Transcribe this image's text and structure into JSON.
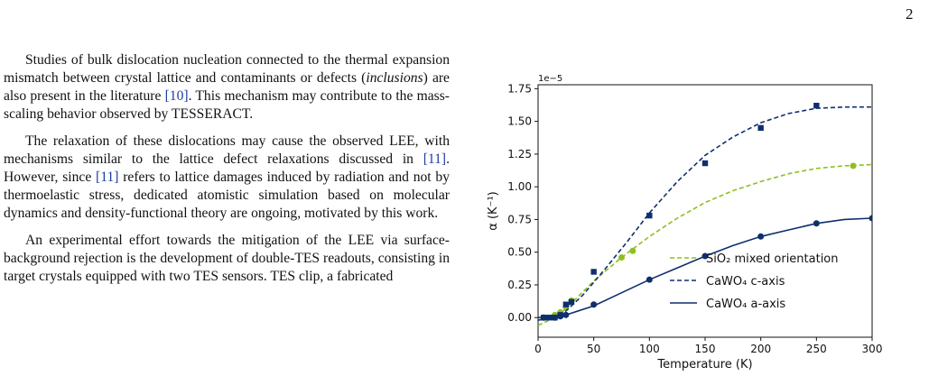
{
  "page_number": "2",
  "paragraphs": [
    {
      "parts": [
        {
          "text": "Studies of bulk dislocation nucleation connected to the thermal expansion mismatch between crystal lattice and contaminants or defects ("
        },
        {
          "text": "inclusions",
          "style": "italic"
        },
        {
          "text": ") are also present in the literature "
        },
        {
          "text": "[10]",
          "style": "cite"
        },
        {
          "text": ". This mechanism may contribute to the mass-scaling behavior observed by TESSERACT."
        }
      ]
    },
    {
      "parts": [
        {
          "text": "The relaxation of these dislocations may cause the observed LEE, with mechanisms similar to the lattice defect relaxations discussed in "
        },
        {
          "text": "[11]",
          "style": "cite"
        },
        {
          "text": ". However, since "
        },
        {
          "text": "[11]",
          "style": "cite"
        },
        {
          "text": " refers to lattice damages induced by radiation and not by thermoelastic stress, dedicated atomistic simulation based on molecular dynamics and density-functional theory are ongoing, motivated by this work."
        }
      ]
    },
    {
      "parts": [
        {
          "text": "An experimental effort towards the mitigation of the LEE via surface-background rejection is the development of double-TES readouts, consisting in target crystals equipped with two TES sensors. TES clip, a fabricated"
        }
      ]
    }
  ],
  "chart_data": {
    "type": "line",
    "xlabel": "Temperature (K)",
    "ylabel": "α (K⁻¹)",
    "y_offset_text": "1e−5",
    "xlim": [
      0,
      300
    ],
    "ylim": [
      -0.15,
      1.78
    ],
    "x_ticks": [
      0,
      50,
      100,
      150,
      200,
      250,
      300
    ],
    "y_ticks": [
      "0.00",
      "0.25",
      "0.50",
      "0.75",
      "1.00",
      "1.25",
      "1.50",
      "1.75"
    ],
    "legend_position": "lower-right",
    "grid": false,
    "series": [
      {
        "name": "SiO₂ mixed orientation",
        "color": "#8fbf1f",
        "line_style": "dashed",
        "marker": "circle",
        "points": [
          [
            5,
            0.0
          ],
          [
            15,
            0.02
          ],
          [
            20,
            0.04
          ],
          [
            25,
            0.08
          ],
          [
            30,
            0.13
          ],
          [
            75,
            0.46
          ],
          [
            85,
            0.51
          ],
          [
            283,
            1.16
          ]
        ],
        "curve": [
          [
            0,
            -0.06
          ],
          [
            10,
            -0.02
          ],
          [
            20,
            0.03
          ],
          [
            30,
            0.11
          ],
          [
            50,
            0.28
          ],
          [
            75,
            0.46
          ],
          [
            100,
            0.62
          ],
          [
            125,
            0.76
          ],
          [
            150,
            0.88
          ],
          [
            175,
            0.97
          ],
          [
            200,
            1.04
          ],
          [
            225,
            1.1
          ],
          [
            250,
            1.14
          ],
          [
            275,
            1.16
          ],
          [
            300,
            1.17
          ]
        ]
      },
      {
        "name": "CaWO₄ c-axis",
        "color": "#0e2f6e",
        "line_style": "dashed",
        "marker": "square",
        "points": [
          [
            5,
            0.0
          ],
          [
            10,
            0.0
          ],
          [
            15,
            0.0
          ],
          [
            20,
            0.02
          ],
          [
            25,
            0.1
          ],
          [
            30,
            0.12
          ],
          [
            50,
            0.35
          ],
          [
            100,
            0.78
          ],
          [
            150,
            1.18
          ],
          [
            200,
            1.45
          ],
          [
            250,
            1.62
          ]
        ],
        "curve": [
          [
            0,
            -0.02
          ],
          [
            15,
            0.0
          ],
          [
            25,
            0.05
          ],
          [
            40,
            0.17
          ],
          [
            60,
            0.37
          ],
          [
            80,
            0.58
          ],
          [
            100,
            0.8
          ],
          [
            125,
            1.04
          ],
          [
            150,
            1.24
          ],
          [
            175,
            1.38
          ],
          [
            200,
            1.49
          ],
          [
            225,
            1.56
          ],
          [
            250,
            1.6
          ],
          [
            275,
            1.61
          ],
          [
            300,
            1.61
          ]
        ]
      },
      {
        "name": "CaWO₄ a-axis",
        "color": "#0e2f6e",
        "line_style": "solid",
        "marker": "circle",
        "points": [
          [
            5,
            0.0
          ],
          [
            15,
            0.0
          ],
          [
            20,
            0.01
          ],
          [
            25,
            0.02
          ],
          [
            50,
            0.1
          ],
          [
            100,
            0.29
          ],
          [
            150,
            0.47
          ],
          [
            200,
            0.62
          ],
          [
            250,
            0.72
          ],
          [
            300,
            0.76
          ]
        ],
        "curve": [
          [
            0,
            0.0
          ],
          [
            15,
            0.0
          ],
          [
            25,
            0.02
          ],
          [
            50,
            0.09
          ],
          [
            75,
            0.19
          ],
          [
            100,
            0.29
          ],
          [
            125,
            0.38
          ],
          [
            150,
            0.47
          ],
          [
            175,
            0.55
          ],
          [
            200,
            0.62
          ],
          [
            225,
            0.67
          ],
          [
            250,
            0.72
          ],
          [
            275,
            0.75
          ],
          [
            300,
            0.76
          ]
        ]
      }
    ]
  }
}
